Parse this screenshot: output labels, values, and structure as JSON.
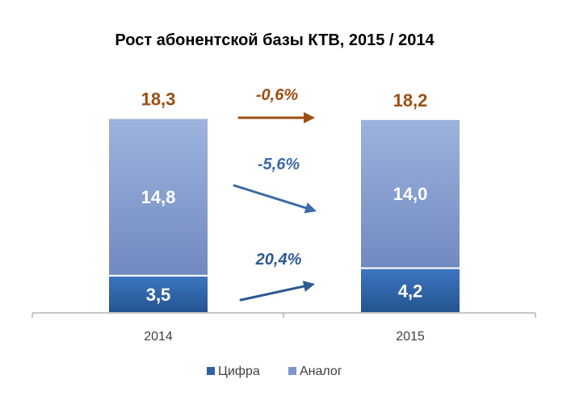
{
  "chart_data": {
    "type": "bar",
    "stacked": true,
    "title": "Рост абонентской базы КТВ, 2015 / 2014",
    "categories": [
      "2014",
      "2015"
    ],
    "series": [
      {
        "name": "Цифра",
        "values": [
          3.5,
          4.2
        ],
        "labels": [
          "3,5",
          "4,2"
        ],
        "color": "#2f63a6"
      },
      {
        "name": "Аналог",
        "values": [
          14.8,
          14.0
        ],
        "labels": [
          "14,8",
          "14,0"
        ],
        "color": "#7b97cc"
      }
    ],
    "totals": {
      "values": [
        18.3,
        18.2
      ],
      "labels": [
        "18,3",
        "18,2"
      ],
      "color": "#9c4e12"
    },
    "changes": [
      {
        "label": "-0,6%",
        "series": "total",
        "color": "#9c4e12"
      },
      {
        "label": "-5,6%",
        "series": "Аналог",
        "color": "#3a6aa8"
      },
      {
        "label": "20,4%",
        "series": "Цифра",
        "color": "#2d5a91"
      }
    ],
    "ylim": [
      0,
      20
    ],
    "grid": false,
    "legend": {
      "position": "bottom"
    }
  }
}
